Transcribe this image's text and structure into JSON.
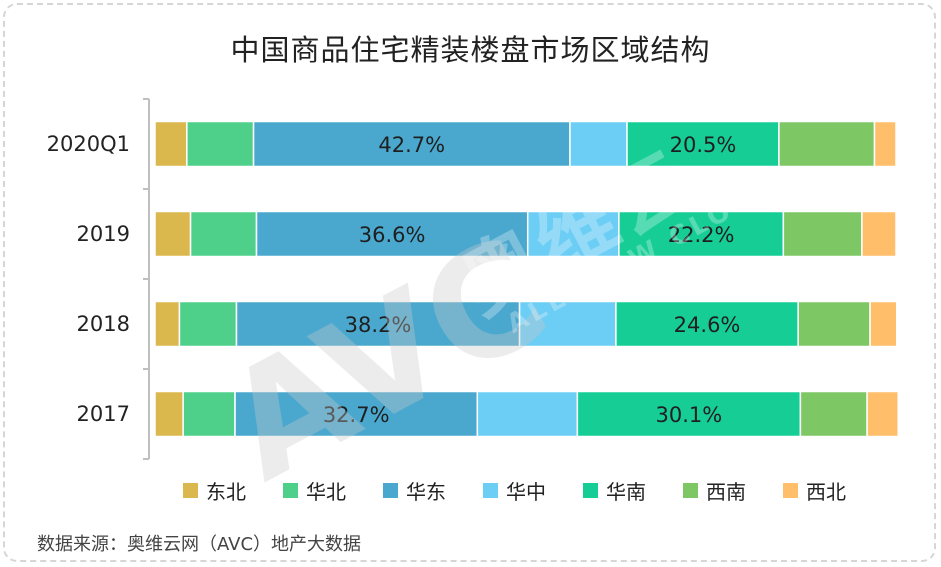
{
  "title": "中国商品住宅精装楼盘市场区域结构",
  "source": "数据来源：奥维云网（AVC）地产大数据",
  "watermark": {
    "brand": "AVC",
    "cn": "奥维云",
    "en": "ALL VIEW CLOUD"
  },
  "colors": {
    "东北": "#dbb84d",
    "华北": "#4fd08a",
    "华东": "#4aa8cf",
    "华中": "#6ccdf5",
    "华南": "#16cd95",
    "西南": "#7dc765",
    "西北": "#ffbe6a"
  },
  "chart_data": {
    "type": "bar",
    "orientation": "horizontal",
    "stacked": true,
    "percent": true,
    "xlim": [
      0,
      100
    ],
    "grid": false,
    "legend": "bottom",
    "categories": [
      "2020Q1",
      "2019",
      "2018",
      "2017"
    ],
    "series": [
      {
        "name": "东北",
        "values": [
          4.3,
          4.8,
          3.3,
          3.8
        ]
      },
      {
        "name": "华北",
        "values": [
          9.0,
          8.9,
          7.7,
          7.0
        ]
      },
      {
        "name": "华东",
        "values": [
          42.7,
          36.6,
          38.2,
          32.7
        ]
      },
      {
        "name": "华中",
        "values": [
          7.7,
          12.3,
          13.0,
          13.5
        ]
      },
      {
        "name": "华南",
        "values": [
          20.5,
          22.2,
          24.6,
          30.1
        ]
      },
      {
        "name": "西南",
        "values": [
          12.9,
          10.6,
          9.7,
          9.0
        ]
      },
      {
        "name": "西北",
        "values": [
          2.9,
          4.6,
          3.6,
          4.2
        ]
      }
    ],
    "data_labels": [
      {
        "category": "2020Q1",
        "series": "华东",
        "text": "42.7%"
      },
      {
        "category": "2020Q1",
        "series": "华南",
        "text": "20.5%"
      },
      {
        "category": "2019",
        "series": "华东",
        "text": "36.6%"
      },
      {
        "category": "2019",
        "series": "华南",
        "text": "22.2%"
      },
      {
        "category": "2018",
        "series": "华东",
        "text": "38.2%"
      },
      {
        "category": "2018",
        "series": "华南",
        "text": "24.6%"
      },
      {
        "category": "2017",
        "series": "华东",
        "text": "32.7%"
      },
      {
        "category": "2017",
        "series": "华南",
        "text": "30.1%"
      }
    ]
  }
}
